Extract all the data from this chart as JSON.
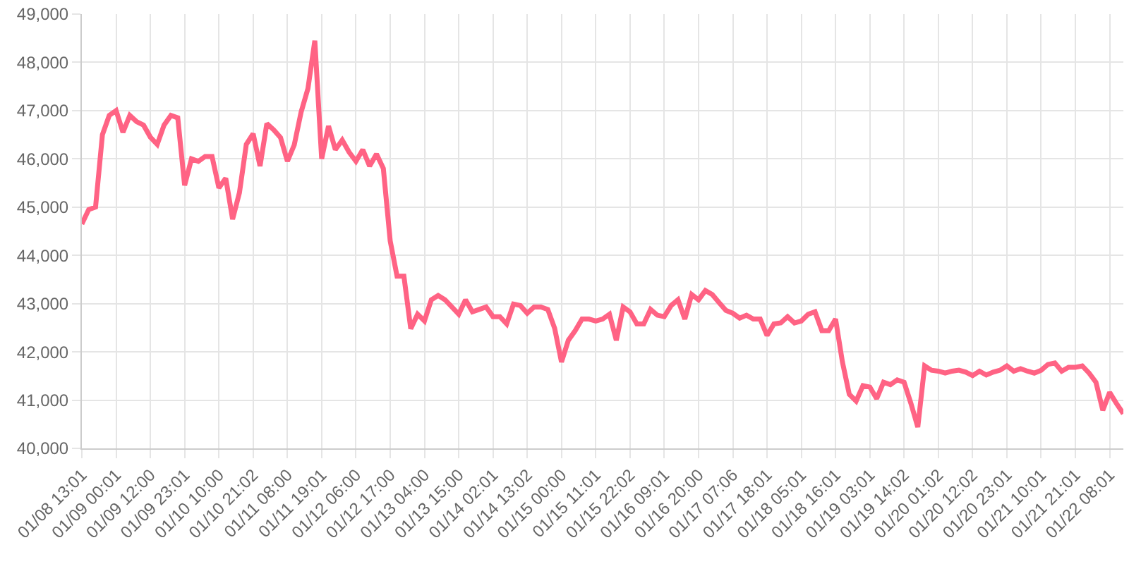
{
  "chart_data": {
    "type": "line",
    "categories": [
      "01/08 13:01",
      null,
      null,
      null,
      null,
      "01/09 00:01",
      null,
      null,
      null,
      null,
      "01/09 12:00",
      null,
      null,
      null,
      null,
      "01/09 23:01",
      null,
      null,
      null,
      null,
      "01/10 10:00",
      null,
      null,
      null,
      null,
      "01/10 21:02",
      null,
      null,
      null,
      null,
      "01/11 08:00",
      null,
      null,
      null,
      null,
      "01/11 19:01",
      null,
      null,
      null,
      null,
      "01/12 06:00",
      null,
      null,
      null,
      null,
      "01/12 17:00",
      null,
      null,
      null,
      null,
      "01/13 04:00",
      null,
      null,
      null,
      null,
      "01/13 15:00",
      null,
      null,
      null,
      null,
      "01/14 02:01",
      null,
      null,
      null,
      null,
      "01/14 13:02",
      null,
      null,
      null,
      null,
      "01/15 00:00",
      null,
      null,
      null,
      null,
      "01/15 11:01",
      null,
      null,
      null,
      null,
      "01/15 22:02",
      null,
      null,
      null,
      null,
      "01/16 09:01",
      null,
      null,
      null,
      null,
      "01/16 20:00",
      null,
      null,
      null,
      null,
      "01/17 07:06",
      null,
      null,
      null,
      null,
      "01/17 18:01",
      null,
      null,
      null,
      null,
      "01/18 05:01",
      null,
      null,
      null,
      null,
      "01/18 16:01",
      null,
      null,
      null,
      null,
      "01/19 03:01",
      null,
      null,
      null,
      null,
      "01/19 14:02",
      null,
      null,
      null,
      null,
      "01/20 01:02",
      null,
      null,
      null,
      null,
      "01/20 12:02",
      null,
      null,
      null,
      null,
      "01/20 23:01",
      null,
      null,
      null,
      null,
      "01/21 10:01",
      null,
      null,
      null,
      null,
      "01/21 21:01",
      null,
      null,
      null,
      null,
      "01/22 08:01",
      null,
      null
    ],
    "series": [
      {
        "color": "#ff6384",
        "values": [
          44650,
          44950,
          45000,
          46500,
          46900,
          47000,
          46550,
          46900,
          46770,
          46700,
          46450,
          46300,
          46700,
          46900,
          46850,
          45450,
          46000,
          45950,
          46050,
          46050,
          45400,
          45600,
          44750,
          45300,
          46300,
          46520,
          45850,
          46730,
          46600,
          46440,
          45950,
          46290,
          46970,
          47460,
          48450,
          46000,
          46680,
          46190,
          46390,
          46140,
          45950,
          46190,
          45850,
          46100,
          45800,
          44300,
          43570,
          43570,
          42480,
          42780,
          42640,
          43080,
          43170,
          43080,
          42930,
          42780,
          43080,
          42830,
          42880,
          42930,
          42730,
          42730,
          42580,
          42990,
          42960,
          42800,
          42930,
          42930,
          42880,
          42490,
          41790,
          42240,
          42440,
          42680,
          42680,
          42640,
          42680,
          42780,
          42240,
          42930,
          42830,
          42580,
          42580,
          42880,
          42760,
          42730,
          42960,
          43080,
          42680,
          43190,
          43080,
          43270,
          43190,
          43020,
          42860,
          42800,
          42700,
          42760,
          42680,
          42680,
          42340,
          42580,
          42600,
          42730,
          42600,
          42640,
          42780,
          42830,
          42440,
          42440,
          42680,
          41790,
          41120,
          40980,
          41300,
          41270,
          41030,
          41370,
          41320,
          41420,
          41370,
          40930,
          40440,
          41710,
          41620,
          41600,
          41560,
          41600,
          41620,
          41580,
          41510,
          41600,
          41520,
          41580,
          41620,
          41710,
          41600,
          41650,
          41600,
          41560,
          41620,
          41740,
          41770,
          41600,
          41680,
          41680,
          41710,
          41560,
          41370,
          40790,
          41160,
          40930,
          40720
        ]
      }
    ],
    "ylim": [
      40000,
      49000
    ],
    "yticks": [
      {
        "value": 40000,
        "label": "40,000"
      },
      {
        "value": 41000,
        "label": "41,000"
      },
      {
        "value": 42000,
        "label": "42,000"
      },
      {
        "value": 43000,
        "label": "43,000"
      },
      {
        "value": 44000,
        "label": "44,000"
      },
      {
        "value": 45000,
        "label": "45,000"
      },
      {
        "value": 46000,
        "label": "46,000"
      },
      {
        "value": 47000,
        "label": "47,000"
      },
      {
        "value": 48000,
        "label": "48,000"
      },
      {
        "value": 49000,
        "label": "49,000"
      }
    ],
    "grid": true,
    "marker": "none",
    "line_style": "solid",
    "legend": false
  }
}
